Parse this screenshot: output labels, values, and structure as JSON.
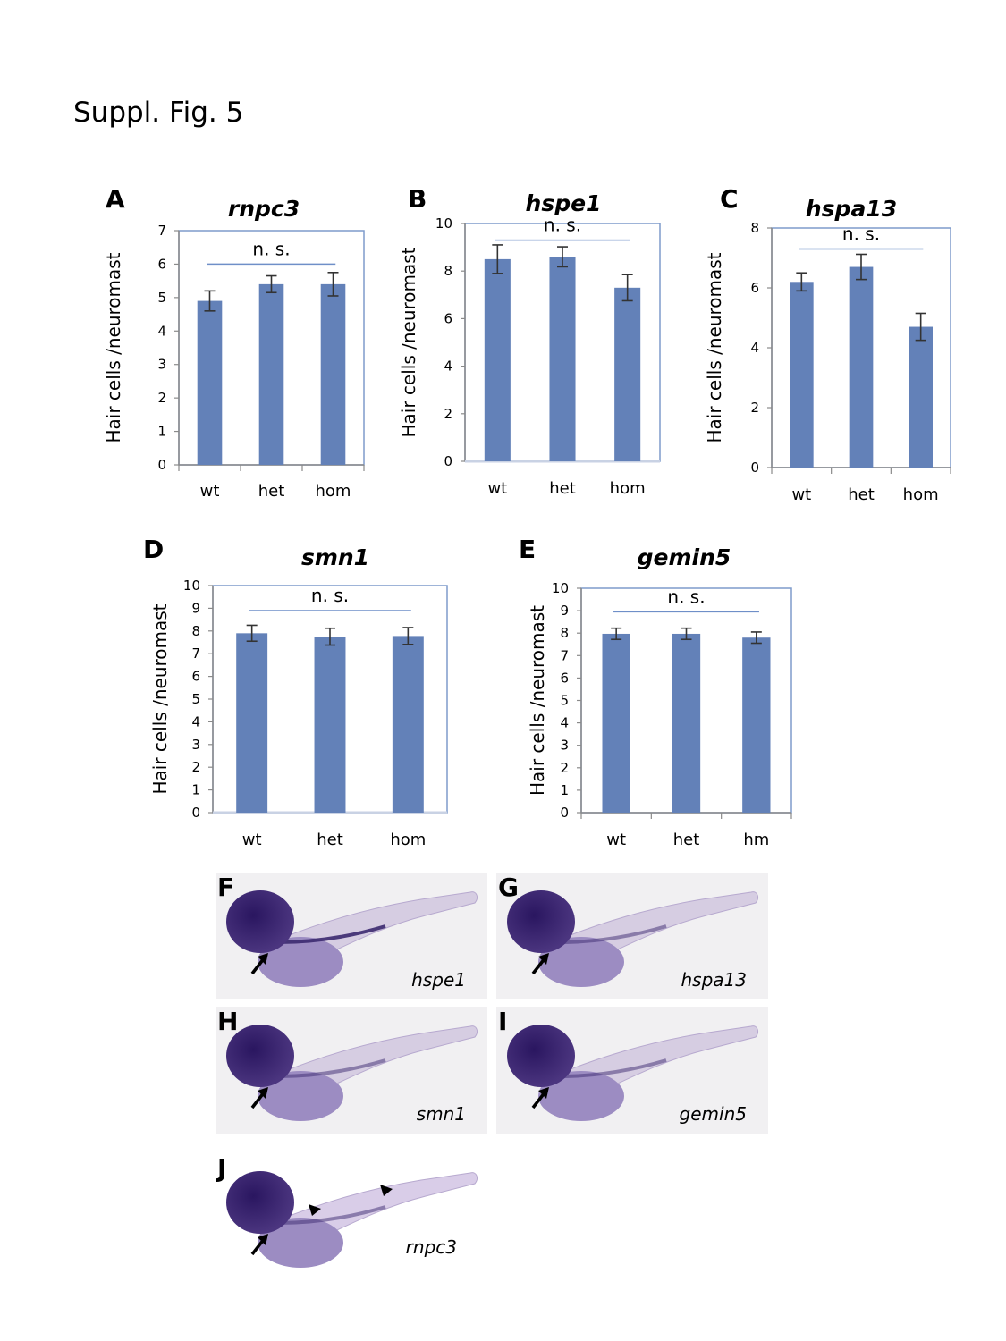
{
  "figure_title": "Suppl. Fig. 5",
  "colors": {
    "bar": "#6381b8",
    "frame": "#7f9bcb",
    "axis": "#8a8a8a",
    "ns_line": "#6f8fc8"
  },
  "chart_data": [
    {
      "panel": "A",
      "type": "bar",
      "title": "rnpc3",
      "xlabel": "",
      "ylabel": "Hair cells /neuromast",
      "categories": [
        "wt",
        "het",
        "hom"
      ],
      "values": [
        4.9,
        5.4,
        5.4
      ],
      "errors": [
        0.3,
        0.25,
        0.35
      ],
      "ylim": [
        0,
        7
      ],
      "yticks": [
        "0",
        "1",
        "2",
        "3",
        "4",
        "5",
        "6",
        "7"
      ],
      "annotation": "n. s.",
      "annotation_level": 6.0
    },
    {
      "panel": "B",
      "type": "bar",
      "title": "hspe1",
      "xlabel": "",
      "ylabel": "Hair cells /neuromast",
      "categories": [
        "wt",
        "het",
        "hom"
      ],
      "values": [
        8.5,
        8.6,
        7.3
      ],
      "errors": [
        0.6,
        0.42,
        0.55
      ],
      "ylim": [
        0,
        10
      ],
      "yticks": [
        "0",
        "2",
        "4",
        "6",
        "8",
        "10"
      ],
      "annotation": "n. s.",
      "annotation_level": 9.3
    },
    {
      "panel": "C",
      "type": "bar",
      "title": "hspa13",
      "xlabel": "",
      "ylabel": "Hair cells /neuromast",
      "categories": [
        "wt",
        "het",
        "hom"
      ],
      "values": [
        6.2,
        6.7,
        4.7
      ],
      "errors": [
        0.3,
        0.42,
        0.45
      ],
      "ylim": [
        0,
        8
      ],
      "yticks": [
        "0",
        "2",
        "4",
        "6",
        "8"
      ],
      "annotation": "n. s.",
      "annotation_level": 7.3
    },
    {
      "panel": "D",
      "type": "bar",
      "title": "smn1",
      "xlabel": "",
      "ylabel": "Hair cells /neuromast",
      "categories": [
        "wt",
        "het",
        "hom"
      ],
      "values": [
        7.9,
        7.75,
        7.78
      ],
      "errors": [
        0.35,
        0.37,
        0.37
      ],
      "ylim": [
        0,
        10
      ],
      "yticks": [
        "0",
        "1",
        "2",
        "3",
        "4",
        "5",
        "6",
        "7",
        "8",
        "9",
        "10"
      ],
      "annotation": "n. s.",
      "annotation_level": 8.9
    },
    {
      "panel": "E",
      "type": "bar",
      "title": "gemin5",
      "xlabel": "",
      "ylabel": "Hair cells /neuromast",
      "categories": [
        "wt",
        "het",
        "hm"
      ],
      "values": [
        7.97,
        7.97,
        7.8
      ],
      "errors": [
        0.25,
        0.25,
        0.25
      ],
      "ylim": [
        0,
        10
      ],
      "yticks": [
        "0",
        "1",
        "2",
        "3",
        "4",
        "5",
        "6",
        "7",
        "8",
        "9",
        "10"
      ],
      "annotation": "n. s.",
      "annotation_level": 8.95
    }
  ],
  "images": [
    {
      "panel": "F",
      "gene": "hspe1",
      "markers": "arrow"
    },
    {
      "panel": "G",
      "gene": "hspa13",
      "markers": "arrow"
    },
    {
      "panel": "H",
      "gene": "smn1",
      "markers": "arrow"
    },
    {
      "panel": "I",
      "gene": "gemin5",
      "markers": "arrow"
    },
    {
      "panel": "J",
      "gene": "rnpc3",
      "markers": "arrow, arrowheads"
    }
  ]
}
